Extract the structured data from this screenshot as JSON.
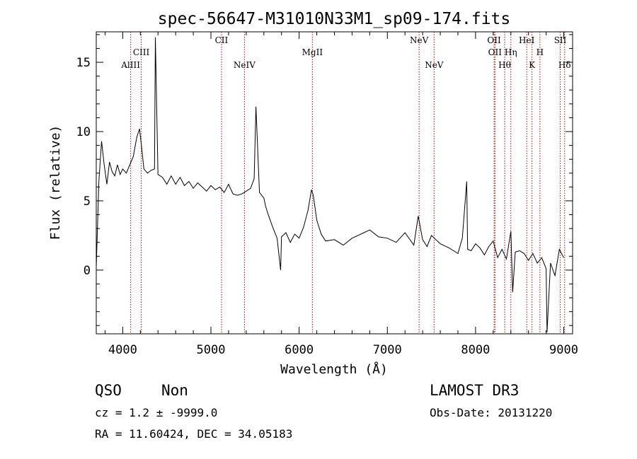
{
  "chart_data": {
    "type": "line",
    "title": "spec-56647-M31010N33M1_sp09-174.fits",
    "xlabel": "Wavelength (Å)",
    "ylabel": "Flux (relative)",
    "xlim": [
      3700,
      9100
    ],
    "ylim": [
      -4.6,
      17.2
    ],
    "x_ticks": [
      4000,
      5000,
      6000,
      7000,
      8000,
      9000
    ],
    "y_ticks": [
      0,
      5,
      10,
      15
    ],
    "grid": false,
    "line_color": "#000000",
    "marker_color": "#cc0000",
    "series": [
      {
        "x": [
          3700,
          3730,
          3760,
          3790,
          3820,
          3850,
          3880,
          3910,
          3940,
          3970,
          4000,
          4040,
          4080,
          4120,
          4160,
          4190,
          4210,
          4240,
          4280,
          4320,
          4360,
          4370,
          4400,
          4450,
          4500,
          4550,
          4600,
          4650,
          4700,
          4750,
          4800,
          4850,
          4900,
          4950,
          5000,
          5050,
          5100,
          5150,
          5200,
          5250,
          5300,
          5350,
          5400,
          5450,
          5490,
          5510,
          5550,
          5600,
          5620,
          5650,
          5700,
          5750,
          5790,
          5800,
          5850,
          5900,
          5950,
          6000,
          6050,
          6100,
          6140,
          6160,
          6200,
          6250,
          6300,
          6400,
          6500,
          6600,
          6700,
          6800,
          6900,
          7000,
          7100,
          7200,
          7300,
          7350,
          7400,
          7450,
          7500,
          7600,
          7700,
          7800,
          7850,
          7900,
          7910,
          7950,
          8000,
          8050,
          8100,
          8150,
          8200,
          8250,
          8300,
          8350,
          8400,
          8420,
          8450,
          8500,
          8550,
          8600,
          8650,
          8700,
          8750,
          8800,
          8810,
          8850,
          8900,
          8950,
          9000
        ],
        "y": [
          0.2,
          6.4,
          9.3,
          7.6,
          6.2,
          7.8,
          7.1,
          6.8,
          7.6,
          6.9,
          7.3,
          7.0,
          7.6,
          8.2,
          9.6,
          10.2,
          9.1,
          7.3,
          7.0,
          7.2,
          7.3,
          16.8,
          6.9,
          6.7,
          6.2,
          6.8,
          6.2,
          6.7,
          6.1,
          6.4,
          5.9,
          6.3,
          6.0,
          5.7,
          6.1,
          5.8,
          6.0,
          5.6,
          6.2,
          5.5,
          5.4,
          5.5,
          5.7,
          5.9,
          6.6,
          11.8,
          5.6,
          5.2,
          4.6,
          4.0,
          3.1,
          2.3,
          0.0,
          2.4,
          2.7,
          2.0,
          2.6,
          2.3,
          3.1,
          4.3,
          5.8,
          5.4,
          3.6,
          2.6,
          2.1,
          2.2,
          1.8,
          2.3,
          2.6,
          2.9,
          2.4,
          2.3,
          2.0,
          2.7,
          1.8,
          3.9,
          2.2,
          1.7,
          2.5,
          1.9,
          1.6,
          1.2,
          2.3,
          6.4,
          1.5,
          1.4,
          1.9,
          1.6,
          1.1,
          1.7,
          2.1,
          0.9,
          1.5,
          0.8,
          2.8,
          -1.6,
          1.3,
          1.4,
          1.2,
          0.7,
          1.2,
          0.5,
          0.9,
          0.1,
          -4.5,
          0.5,
          -0.4,
          1.5,
          0.9
        ]
      }
    ],
    "lines": [
      {
        "label": "AlIII",
        "x": 4090,
        "row": 3
      },
      {
        "label": "CIII",
        "x": 4210,
        "row": 2
      },
      {
        "label": "CII",
        "x": 5120,
        "row": 1
      },
      {
        "label": "NeIV",
        "x": 5380,
        "row": 3
      },
      {
        "label": "MgII",
        "x": 6150,
        "row": 2
      },
      {
        "label": "NeV",
        "x": 7360,
        "row": 1
      },
      {
        "label": "NeV",
        "x": 7530,
        "row": 3
      },
      {
        "label": "OII",
        "x": 8210,
        "row": 1
      },
      {
        "label": "OII",
        "x": 8220,
        "row": 2
      },
      {
        "label": "Hθ",
        "x": 8330,
        "row": 3
      },
      {
        "label": "Hη",
        "x": 8400,
        "row": 2
      },
      {
        "label": "HeI",
        "x": 8580,
        "row": 1
      },
      {
        "label": "K",
        "x": 8640,
        "row": 3
      },
      {
        "label": "H",
        "x": 8730,
        "row": 2
      },
      {
        "label": "SII",
        "x": 8960,
        "row": 1
      },
      {
        "label": "Hδ",
        "x": 9010,
        "row": 3
      }
    ]
  },
  "info": {
    "class": "QSO",
    "subclass": "Non",
    "survey": "LAMOST DR3",
    "cz": "cz = 1.2 ± -9999.0",
    "obs_date": "Obs-Date: 20131220",
    "radec": "RA =  11.60424, DEC =  34.05183"
  }
}
